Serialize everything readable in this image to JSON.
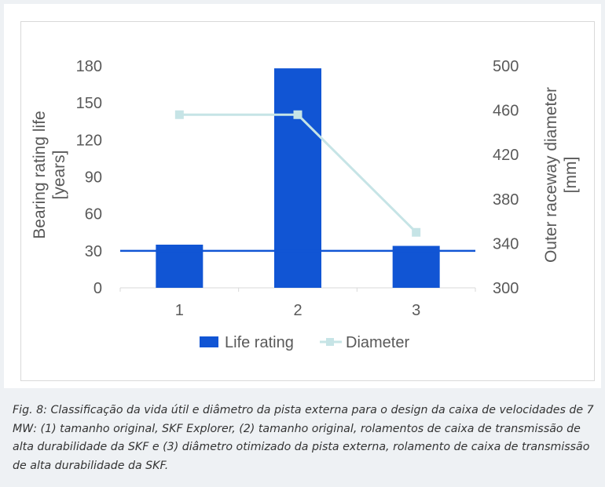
{
  "chart_data": {
    "type": "bar",
    "categories": [
      "1",
      "2",
      "3"
    ],
    "series": [
      {
        "name": "Life rating",
        "kind": "bar",
        "axis": "left",
        "color": "#1155d4",
        "values": [
          35,
          178,
          34
        ]
      },
      {
        "name": "Diameter",
        "kind": "line",
        "axis": "right",
        "color": "#c6e4e6",
        "values": [
          456,
          456,
          350
        ]
      }
    ],
    "reference_line": {
      "value": 30,
      "axis": "left",
      "color": "#1155d4"
    },
    "ylabel_left": [
      "Bearing rating life",
      "[years]"
    ],
    "ylabel_right": [
      "Outer raceway diameter",
      "[mm]"
    ],
    "ylim_left": [
      0,
      180
    ],
    "yticks_left": [
      0,
      30,
      60,
      90,
      120,
      150,
      180
    ],
    "ylim_right": [
      300,
      500
    ],
    "yticks_right": [
      300,
      340,
      380,
      420,
      460,
      500
    ],
    "grid": false,
    "legend": "bottom"
  },
  "caption": "Fig. 8: Classificação da vida útil e diâmetro da pista externa para o design da caixa de velocidades de 7 MW: (1) tamanho original, SKF Explorer, (2) tamanho original, rolamentos de caixa de transmissão de alta durabilidade da SKF e (3) diâmetro otimizado da pista externa, rolamento de caixa de transmissão de alta durabilidade da SKF."
}
